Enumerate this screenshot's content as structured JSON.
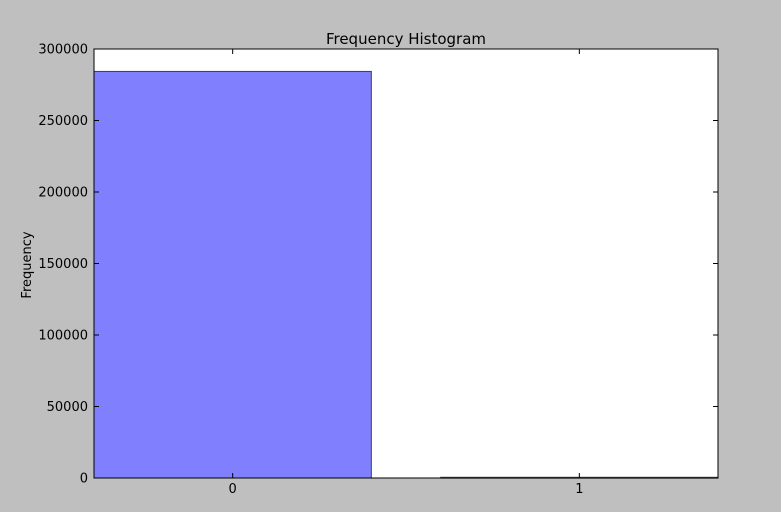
{
  "chart_data": {
    "type": "bar",
    "title": "Frequency Histogram",
    "xlabel": "",
    "ylabel": "Frequency",
    "categories": [
      "0",
      "1"
    ],
    "values": [
      284315,
      492
    ],
    "ylim": [
      0,
      300000
    ],
    "yticks": [
      "0",
      "50000",
      "100000",
      "150000",
      "200000",
      "250000",
      "300000"
    ],
    "grid": false,
    "legend": "none",
    "colors": {
      "bar_fill": "#8080ff",
      "bar_edge": "#404040",
      "figure_bg": "#bfbfbf",
      "axes_bg": "#ffffff"
    }
  }
}
